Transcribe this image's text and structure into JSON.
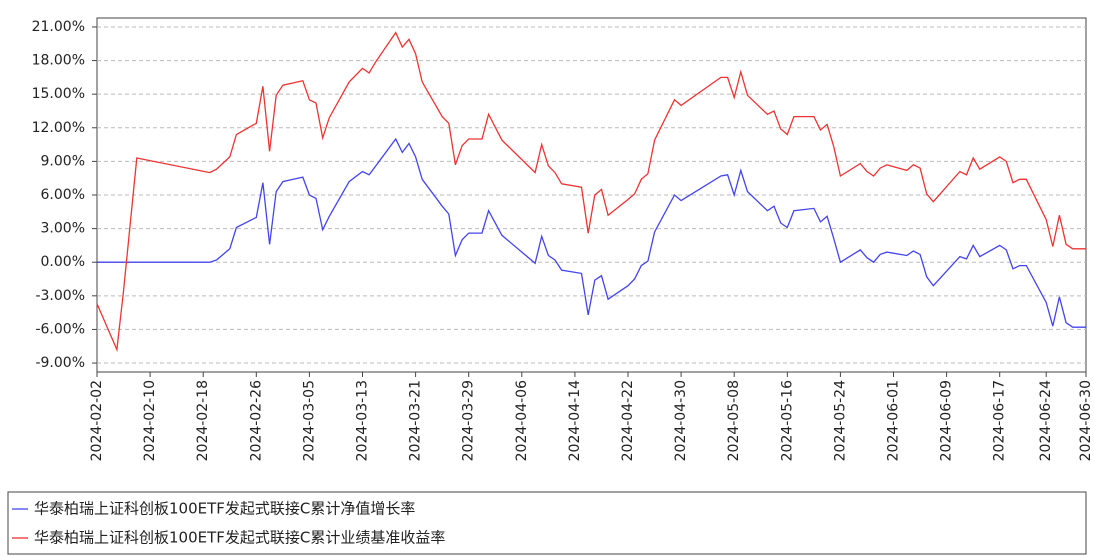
{
  "chart_data": {
    "type": "line",
    "x": [
      "2024-02-02",
      "2024-02-05",
      "2024-02-06",
      "2024-02-08",
      "2024-02-19",
      "2024-02-20",
      "2024-02-22",
      "2024-02-23",
      "2024-02-26",
      "2024-02-27",
      "2024-02-28",
      "2024-02-29",
      "2024-03-01",
      "2024-03-04",
      "2024-03-05",
      "2024-03-06",
      "2024-03-07",
      "2024-03-08",
      "2024-03-11",
      "2024-03-13",
      "2024-03-14",
      "2024-03-15",
      "2024-03-18",
      "2024-03-19",
      "2024-03-20",
      "2024-03-21",
      "2024-03-22",
      "2024-03-25",
      "2024-03-26",
      "2024-03-27",
      "2024-03-28",
      "2024-03-29",
      "2024-03-31",
      "2024-04-01",
      "2024-04-03",
      "2024-04-08",
      "2024-04-09",
      "2024-04-10",
      "2024-04-11",
      "2024-04-12",
      "2024-04-15",
      "2024-04-16",
      "2024-04-17",
      "2024-04-18",
      "2024-04-19",
      "2024-04-22",
      "2024-04-23",
      "2024-04-24",
      "2024-04-25",
      "2024-04-26",
      "2024-04-29",
      "2024-04-30",
      "2024-05-06",
      "2024-05-07",
      "2024-05-08",
      "2024-05-09",
      "2024-05-10",
      "2024-05-13",
      "2024-05-14",
      "2024-05-15",
      "2024-05-16",
      "2024-05-17",
      "2024-05-20",
      "2024-05-21",
      "2024-05-22",
      "2024-05-23",
      "2024-05-24",
      "2024-05-27",
      "2024-05-28",
      "2024-05-29",
      "2024-05-30",
      "2024-05-31",
      "2024-06-03",
      "2024-06-04",
      "2024-06-05",
      "2024-06-06",
      "2024-06-07",
      "2024-06-11",
      "2024-06-12",
      "2024-06-13",
      "2024-06-14",
      "2024-06-17",
      "2024-06-18",
      "2024-06-19",
      "2024-06-20",
      "2024-06-21",
      "2024-06-24",
      "2024-06-25",
      "2024-06-26",
      "2024-06-27",
      "2024-06-28",
      "2024-06-30"
    ],
    "series": [
      {
        "name": "华泰柏瑞上证科创板100ETF发起式联接C累计净值增长率",
        "color": "#4444ee",
        "values": [
          0,
          0,
          0,
          0,
          0,
          0.2,
          1.2,
          3.1,
          4.0,
          7.1,
          1.6,
          6.3,
          7.2,
          7.6,
          6.0,
          5.7,
          2.9,
          4.1,
          7.2,
          8.1,
          7.8,
          8.6,
          11.0,
          9.8,
          10.6,
          9.4,
          7.4,
          5.0,
          4.3,
          0.6,
          2.0,
          2.6,
          2.6,
          4.6,
          2.4,
          -0.1,
          2.3,
          0.6,
          0.2,
          -0.7,
          -1.0,
          -4.7,
          -1.6,
          -1.2,
          -3.3,
          -2.1,
          -1.5,
          -0.3,
          0.1,
          2.7,
          6.0,
          5.5,
          7.7,
          7.8,
          6.0,
          8.2,
          6.3,
          4.6,
          5.0,
          3.5,
          3.1,
          4.6,
          4.8,
          3.6,
          4.1,
          2.1,
          0.0,
          1.1,
          0.4,
          0.0,
          0.7,
          0.9,
          0.6,
          1.0,
          0.7,
          -1.3,
          -2.1,
          0.5,
          0.3,
          1.5,
          0.5,
          1.5,
          1.1,
          -0.6,
          -0.3,
          -0.3,
          -3.6,
          -5.7,
          -3.1,
          -5.4,
          -5.8,
          -5.8
        ]
      },
      {
        "name": "华泰柏瑞上证科创板100ETF发起式联接C累计业绩基准收益率",
        "color": "#ee3333",
        "values": [
          -3.7,
          -7.8,
          -2.5,
          9.3,
          8.0,
          8.3,
          9.4,
          11.4,
          12.4,
          15.7,
          9.9,
          14.9,
          15.8,
          16.2,
          14.5,
          14.2,
          11.1,
          12.9,
          16.1,
          17.3,
          16.9,
          17.9,
          20.5,
          19.2,
          19.9,
          18.6,
          16.1,
          13.0,
          12.4,
          8.7,
          10.4,
          11.0,
          11.0,
          13.2,
          10.9,
          8.0,
          10.5,
          8.6,
          8.0,
          7.0,
          6.7,
          2.6,
          6.0,
          6.5,
          4.2,
          5.6,
          6.1,
          7.4,
          7.9,
          10.9,
          14.5,
          14.0,
          16.5,
          16.5,
          14.7,
          17.0,
          14.9,
          13.2,
          13.5,
          11.9,
          11.4,
          13.0,
          13.0,
          11.8,
          12.3,
          10.3,
          7.7,
          8.8,
          8.1,
          7.7,
          8.4,
          8.7,
          8.2,
          8.7,
          8.4,
          6.1,
          5.4,
          8.1,
          7.8,
          9.3,
          8.3,
          9.4,
          9.0,
          7.1,
          7.4,
          7.4,
          3.8,
          1.4,
          4.2,
          1.6,
          1.2,
          1.2
        ]
      }
    ],
    "xlim": [
      "2024-02-02",
      "2024-06-30"
    ],
    "xticks": [
      "2024-02-02",
      "2024-02-10",
      "2024-02-18",
      "2024-02-26",
      "2024-03-05",
      "2024-03-13",
      "2024-03-21",
      "2024-03-29",
      "2024-04-06",
      "2024-04-14",
      "2024-04-22",
      "2024-04-30",
      "2024-05-08",
      "2024-05-16",
      "2024-05-24",
      "2024-06-01",
      "2024-06-09",
      "2024-06-17",
      "2024-06-24",
      "2024-06-30"
    ],
    "ylim": [
      -9.8,
      21.8
    ],
    "yticks": [
      {
        "value": -9,
        "label": "-9.00%"
      },
      {
        "value": -6,
        "label": "-6.00%"
      },
      {
        "value": -3,
        "label": "-3.00%"
      },
      {
        "value": 0,
        "label": "0.00%"
      },
      {
        "value": 3,
        "label": "3.00%"
      },
      {
        "value": 6,
        "label": "6.00%"
      },
      {
        "value": 9,
        "label": "9.00%"
      },
      {
        "value": 12,
        "label": "12.00%"
      },
      {
        "value": 15,
        "label": "15.00%"
      },
      {
        "value": 18,
        "label": "18.00%"
      },
      {
        "value": 21,
        "label": "21.00%"
      }
    ],
    "grid": true
  }
}
